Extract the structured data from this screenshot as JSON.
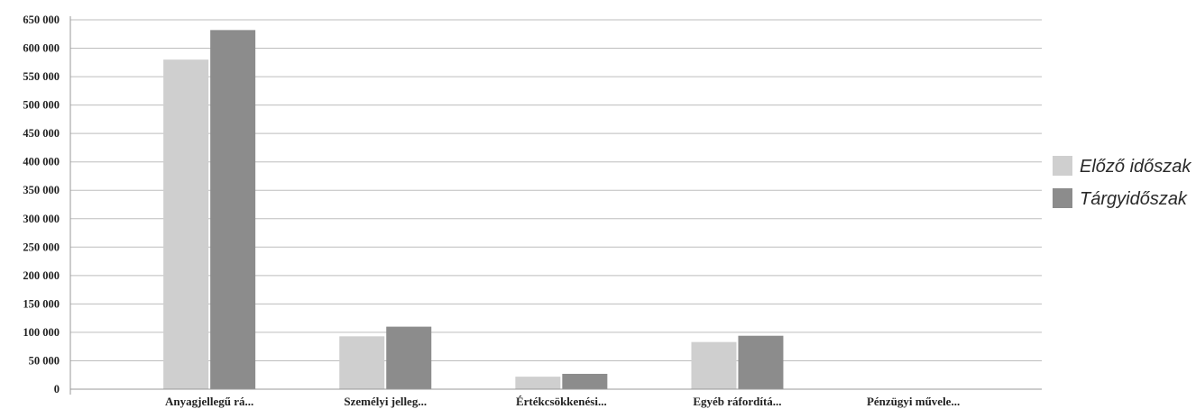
{
  "chart_data": {
    "type": "bar",
    "categories": [
      "Anyagjellegű rá...",
      "Személyi jelleg...",
      "Értékcsökkenési...",
      "Egyéb ráfordítá...",
      "Pénzügyi művele..."
    ],
    "series": [
      {
        "name": "Előző időszak",
        "values": [
          580000,
          93000,
          22000,
          83000,
          0
        ],
        "color": "#cfcfcf"
      },
      {
        "name": "Tárgyidőszak",
        "values": [
          632000,
          110000,
          27000,
          94000,
          0
        ],
        "color": "#8c8c8c"
      }
    ],
    "y_ticks": [
      "0",
      "50 000",
      "100 000",
      "150 000",
      "200 000",
      "250 000",
      "300 000",
      "350 000",
      "400 000",
      "450 000",
      "500 000",
      "550 000",
      "600 000",
      "650 000"
    ],
    "ylim": [
      0,
      650000
    ],
    "ytick_step": 50000,
    "grid": true,
    "legend_position": "right",
    "title": "",
    "xlabel": "",
    "ylabel": ""
  }
}
